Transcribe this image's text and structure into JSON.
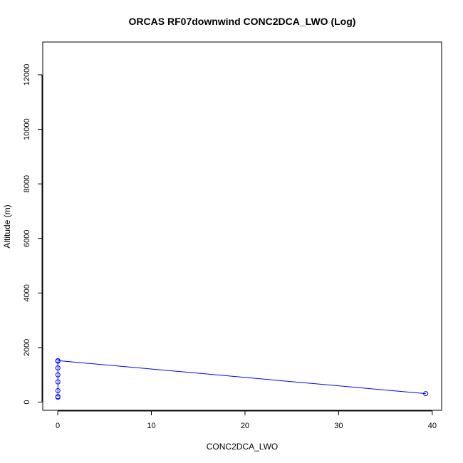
{
  "chart_data": {
    "type": "line",
    "title": "ORCAS RF07downwind CONC2DCA_LWO (Log)",
    "xlabel": "CONC2DCA_LWO",
    "ylabel": "Altitude (m)",
    "xlim": [
      -1.6,
      41.0
    ],
    "ylim": [
      -300,
      13200
    ],
    "x_ticks": [
      0,
      10,
      20,
      30,
      40
    ],
    "y_ticks": [
      0,
      2000,
      4000,
      6000,
      8000,
      10000,
      12000
    ],
    "grid": false,
    "legend": "none",
    "series": [
      {
        "color": "#0000ff",
        "points": [
          {
            "x": 0.02,
            "y": 180
          },
          {
            "x": 0.02,
            "y": 200
          },
          {
            "x": 0.02,
            "y": 420
          },
          {
            "x": 0.02,
            "y": 740
          },
          {
            "x": 0.02,
            "y": 1000
          },
          {
            "x": 0.02,
            "y": 1250
          },
          {
            "x": 0.02,
            "y": 1500
          },
          {
            "x": 0.02,
            "y": 1520
          },
          {
            "x": 39.3,
            "y": 310
          }
        ]
      }
    ]
  }
}
